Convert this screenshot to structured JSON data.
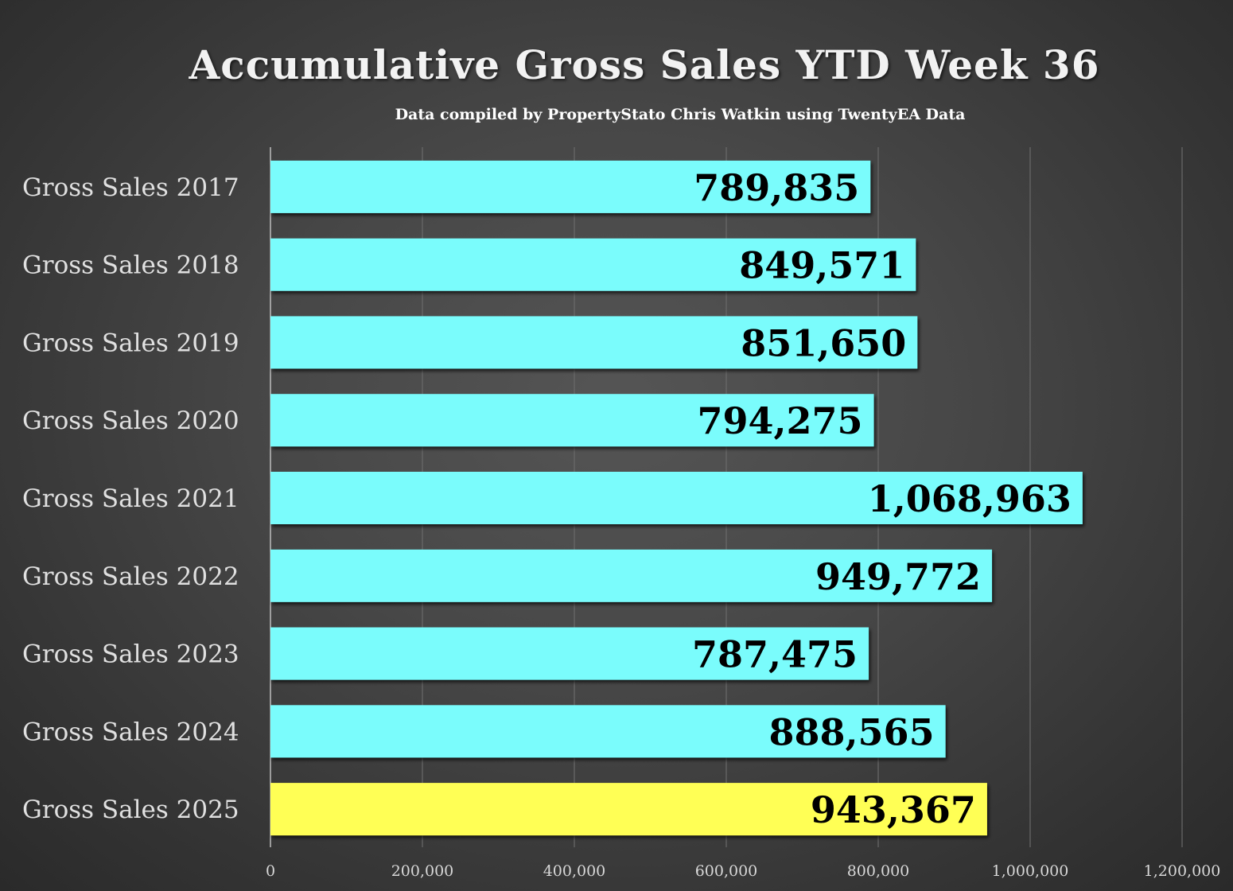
{
  "chart_data": {
    "type": "bar",
    "orientation": "horizontal",
    "title": "Accumulative Gross Sales YTD Week 36",
    "subtitle": "Data compiled by PropertyStato Chris Watkin using TwentyEA Data",
    "categories": [
      "Gross Sales 2017",
      "Gross Sales 2018",
      "Gross Sales 2019",
      "Gross Sales 2020",
      "Gross Sales 2021",
      "Gross Sales 2022",
      "Gross Sales 2023",
      "Gross Sales 2024",
      "Gross Sales 2025"
    ],
    "values": [
      789835,
      849571,
      851650,
      794275,
      1068963,
      949772,
      787475,
      888565,
      943367
    ],
    "data_labels": [
      "789,835",
      "849,571",
      "851,650",
      "794,275",
      "1,068,963",
      "949,772",
      "787,475",
      "888,565",
      "943,367"
    ],
    "colors": [
      "#7afcfc",
      "#7afcfc",
      "#7afcfc",
      "#7afcfc",
      "#7afcfc",
      "#7afcfc",
      "#7afcfc",
      "#7afcfc",
      "#ffff55"
    ],
    "xlim": [
      0,
      1200000
    ],
    "x_ticks": [
      0,
      200000,
      400000,
      600000,
      800000,
      1000000,
      1200000
    ],
    "x_tick_labels": [
      "0",
      "200,000",
      "400,000",
      "600,000",
      "800,000",
      "1,000,000",
      "1,200,000"
    ],
    "grid": "vertical",
    "legend": "none",
    "xlabel": "",
    "ylabel": ""
  }
}
